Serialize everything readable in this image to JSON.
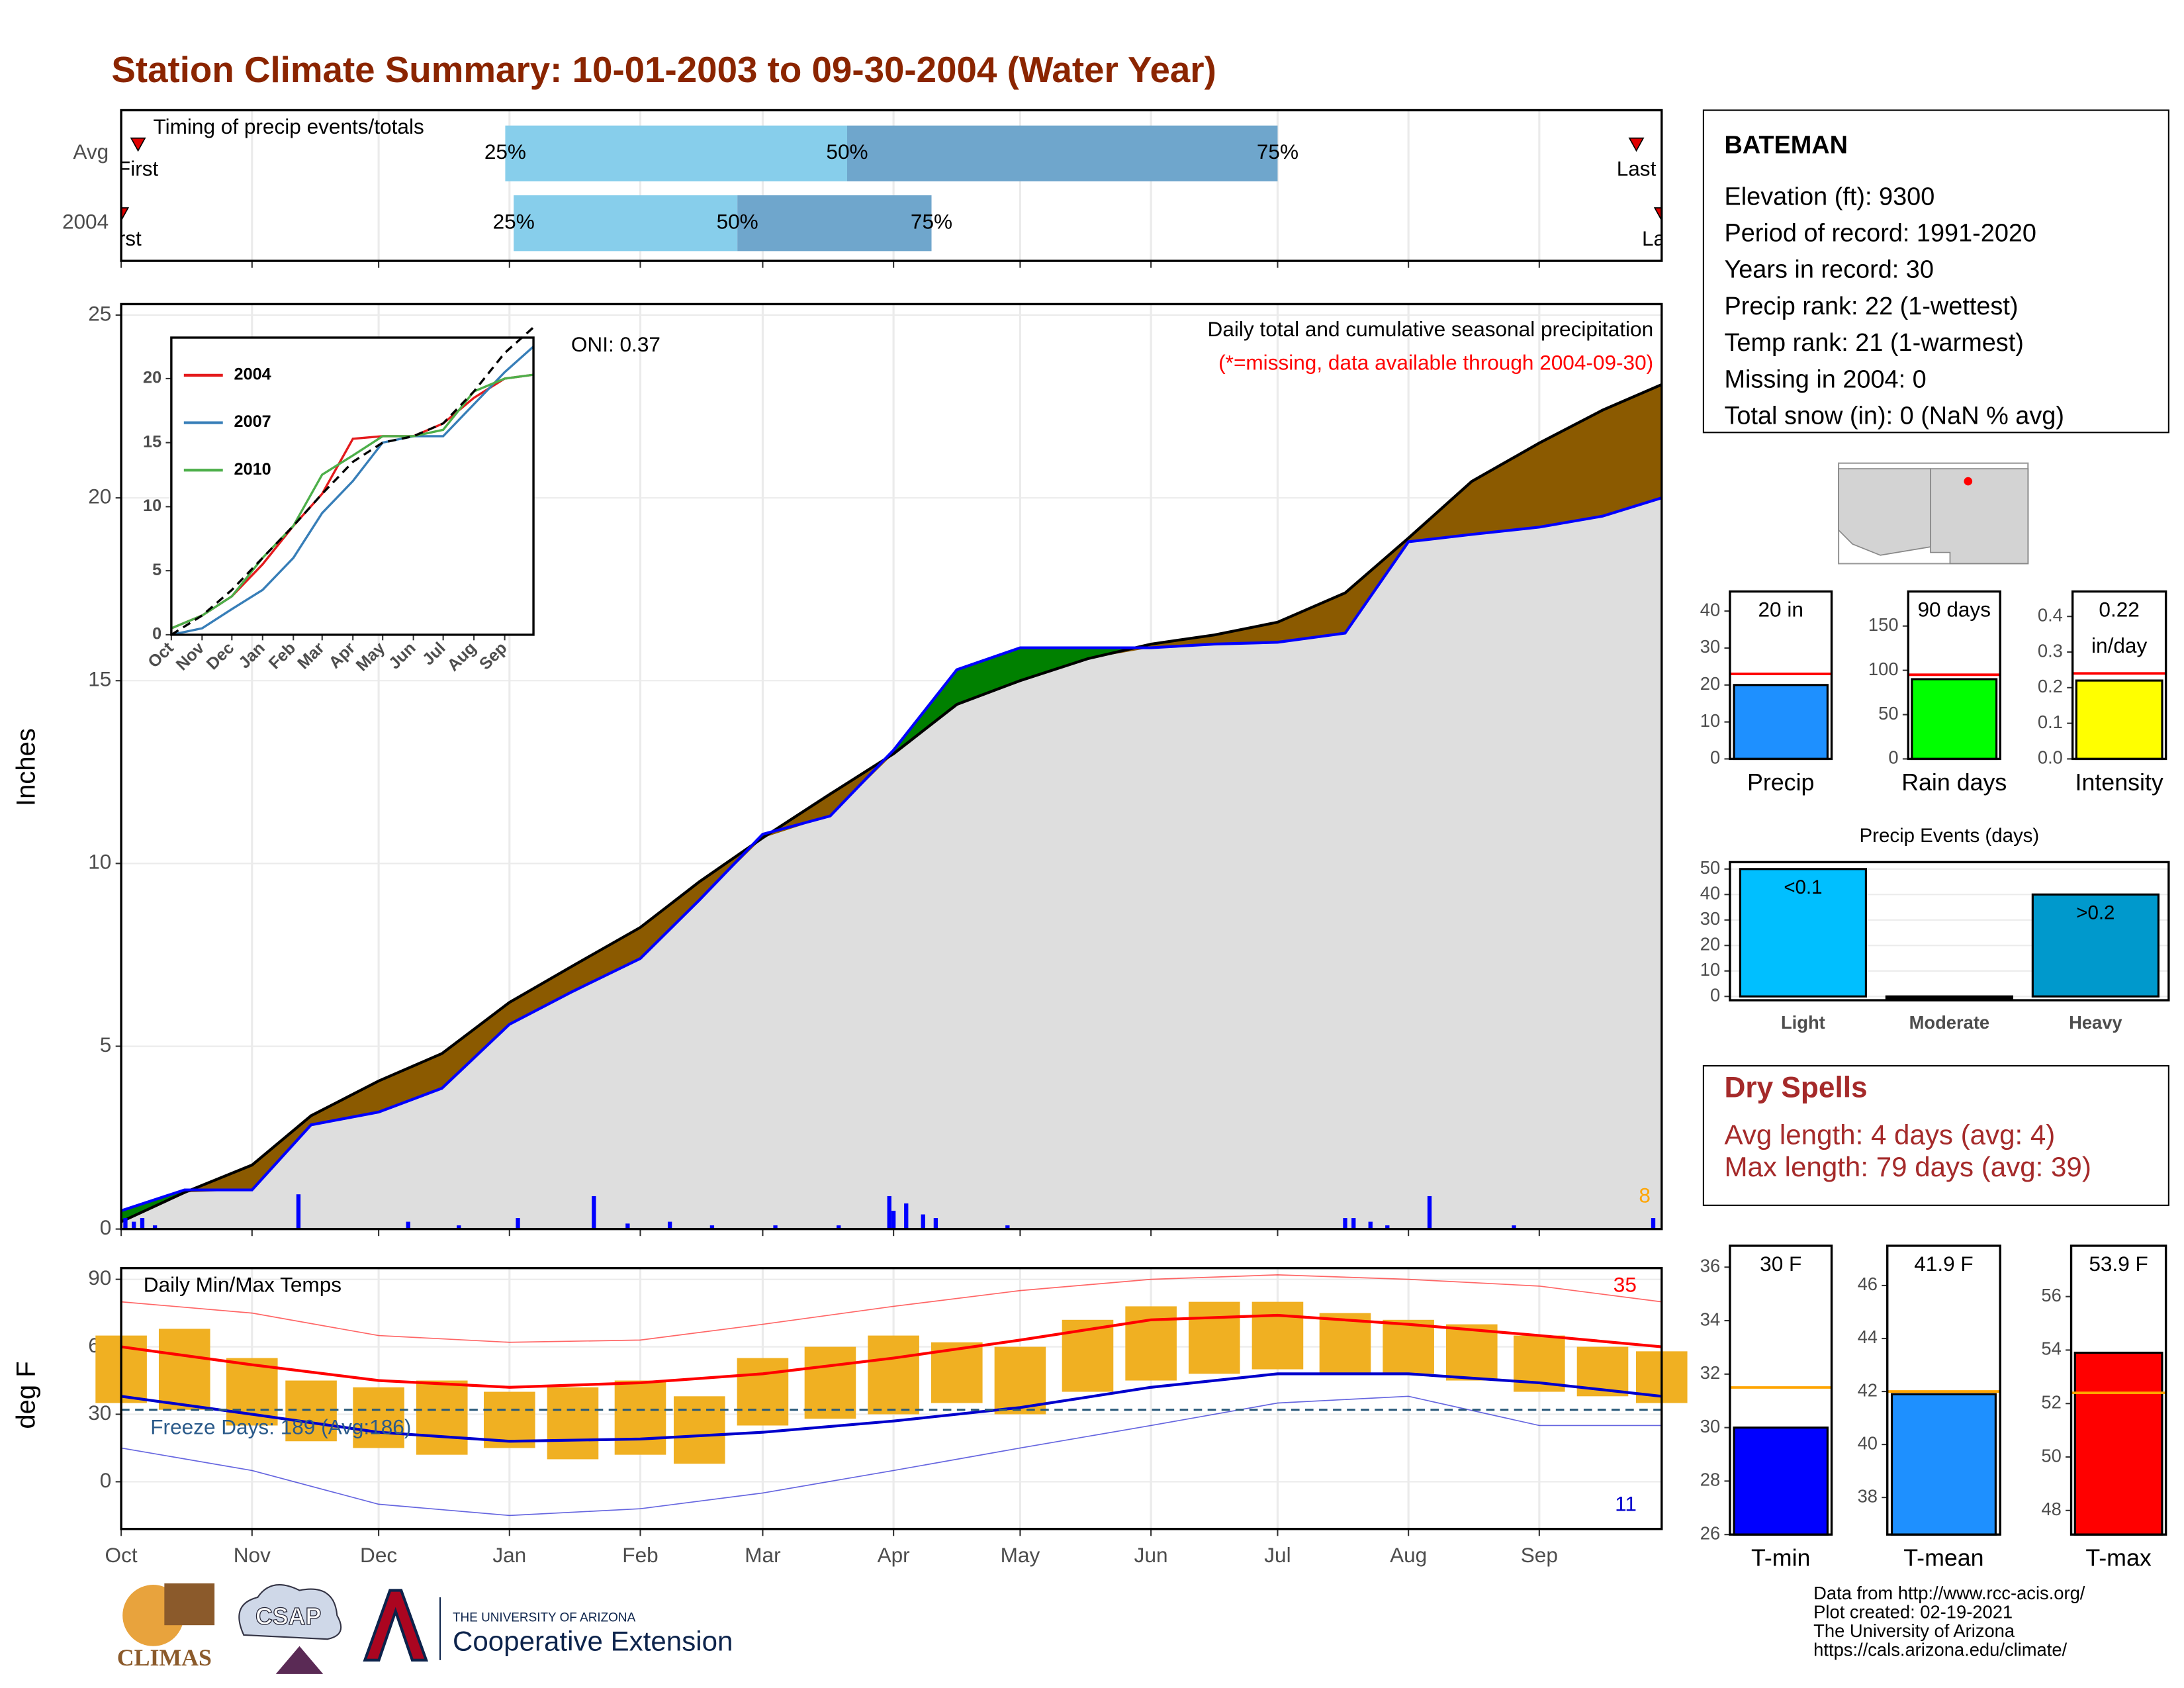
{
  "title": "Station Climate Summary: 10-01-2003 to 09-30-2004 (Water Year)",
  "chart_data": [
    {
      "type": "timing",
      "title": "Timing of precip events/totals",
      "xlim": [
        0,
        365
      ],
      "xticks": [
        0,
        31,
        61,
        92,
        123,
        152,
        183,
        213,
        244,
        274,
        305,
        336
      ],
      "grid": true,
      "rows": [
        {
          "label": "Avg",
          "first": 4,
          "q25": 91,
          "q50": 172,
          "q75": 274,
          "last": 359
        },
        {
          "label": "2004",
          "first": 0,
          "q25": 93,
          "q50": 146,
          "q75": 192,
          "last": 365
        }
      ],
      "quartile_labels": [
        "25%",
        "50%",
        "75%"
      ],
      "first_label": "First",
      "last_label": "Last",
      "colors": [
        "#87ceeb",
        "#6fa6cc"
      ],
      "marker_color": "#e00000"
    },
    {
      "type": "area",
      "ylabel": "Inches",
      "xlim": [
        0,
        365
      ],
      "ylim": [
        0,
        25.3
      ],
      "xticks": [
        0,
        31,
        61,
        92,
        123,
        152,
        183,
        213,
        244,
        274,
        305,
        336
      ],
      "yticks": [
        0,
        5,
        10,
        15,
        20,
        25
      ],
      "grid": true,
      "x": [
        0,
        15,
        31,
        45,
        61,
        76,
        92,
        107,
        123,
        137,
        152,
        168,
        183,
        198,
        213,
        229,
        244,
        259,
        274,
        290,
        305,
        320,
        336,
        351,
        365
      ],
      "series": [
        {
          "color": "#000000",
          "values": [
            0.2,
            1.0,
            1.75,
            3.1,
            4.05,
            4.8,
            6.2,
            7.2,
            8.25,
            9.5,
            10.7,
            11.9,
            13.0,
            14.35,
            15.0,
            15.6,
            16.0,
            16.25,
            16.6,
            17.4,
            18.9,
            20.45,
            21.5,
            22.4,
            23.1
          ]
        },
        {
          "color": "#0000ff",
          "values": [
            0.5,
            1.07,
            1.07,
            2.85,
            3.2,
            3.85,
            5.6,
            6.5,
            7.4,
            9.0,
            10.8,
            11.3,
            13.1,
            15.3,
            15.9,
            15.9,
            15.9,
            16.0,
            16.05,
            16.3,
            18.8,
            19.0,
            19.2,
            19.5,
            20.0
          ]
        }
      ],
      "above_color": "#8b5a00",
      "below_color": "#008000",
      "base_color": "#dedede",
      "daily": {
        "color": "#0000ff",
        "x": [
          1,
          3,
          5,
          8,
          42,
          68,
          80,
          94,
          112,
          120,
          130,
          140,
          155,
          170,
          182,
          183,
          186,
          190,
          193,
          210,
          290,
          292,
          296,
          300,
          310,
          330,
          363
        ],
        "values": [
          0.3,
          0.2,
          0.3,
          0.1,
          0.95,
          0.2,
          0.1,
          0.3,
          0.9,
          0.15,
          0.2,
          0.1,
          0.1,
          0.1,
          0.9,
          0.5,
          0.7,
          0.4,
          0.3,
          0.1,
          0.3,
          0.3,
          0.2,
          0.1,
          0.9,
          0.1,
          0.3
        ]
      },
      "annotations": [
        "ONI: 0.37",
        "Daily total and cumulative seasonal precipitation",
        "(*=missing, data available through 2004-09-30)",
        "8"
      ]
    },
    {
      "type": "line",
      "xlim": [
        0,
        365
      ],
      "ylim": [
        0,
        23.2
      ],
      "yticks": [
        0,
        5,
        10,
        15,
        20
      ],
      "xticks": [
        {
          "value": 0,
          "label": "Oct"
        },
        {
          "value": 31,
          "label": "Nov"
        },
        {
          "value": 61,
          "label": "Dec"
        },
        {
          "value": 92,
          "label": "Jan"
        },
        {
          "value": 123,
          "label": "Feb"
        },
        {
          "value": 152,
          "label": "Mar"
        },
        {
          "value": 183,
          "label": "Apr"
        },
        {
          "value": 213,
          "label": "May"
        },
        {
          "value": 244,
          "label": "Jun"
        },
        {
          "value": 274,
          "label": "Jul"
        },
        {
          "value": 305,
          "label": "Aug"
        },
        {
          "value": 336,
          "label": "Sep"
        }
      ],
      "x": [
        0,
        31,
        61,
        92,
        123,
        152,
        183,
        213,
        244,
        274,
        305,
        336,
        365
      ],
      "series": [
        {
          "name": "2004",
          "color": "#e41a1c",
          "values": [
            0.5,
            1.5,
            3,
            5.5,
            8.5,
            11,
            15.3,
            15.5,
            15.5,
            16.5,
            18.5,
            20,
            20.3
          ]
        },
        {
          "name": "2007",
          "color": "#377eb8",
          "values": [
            0,
            0.5,
            2,
            3.5,
            6,
            9.5,
            12,
            15,
            15.5,
            15.5,
            18,
            20.5,
            22.5
          ]
        },
        {
          "name": "2010",
          "color": "#4daf4a",
          "values": [
            0.5,
            1.5,
            3,
            6,
            8.5,
            12.5,
            14,
            15.5,
            15.5,
            16,
            19,
            20,
            20.3
          ]
        }
      ],
      "average": {
        "color": "#000000",
        "values": [
          0,
          1.5,
          3.5,
          6,
          8.5,
          11,
          13.5,
          15,
          15.5,
          16.5,
          19,
          22,
          24
        ]
      }
    },
    {
      "type": "range_bar",
      "ylabel": "deg F",
      "xlim": [
        0,
        365
      ],
      "ylim": [
        -21,
        95
      ],
      "yticks": [
        0,
        30,
        60,
        90
      ],
      "grid": true,
      "xticks": [
        {
          "value": 0,
          "label": "Oct"
        },
        {
          "value": 31,
          "label": "Nov"
        },
        {
          "value": 61,
          "label": "Dec"
        },
        {
          "value": 92,
          "label": "Jan"
        },
        {
          "value": 123,
          "label": "Feb"
        },
        {
          "value": 152,
          "label": "Mar"
        },
        {
          "value": 183,
          "label": "Apr"
        },
        {
          "value": 213,
          "label": "May"
        },
        {
          "value": 244,
          "label": "Jun"
        },
        {
          "value": 274,
          "label": "Jul"
        },
        {
          "value": 305,
          "label": "Aug"
        },
        {
          "value": 336,
          "label": "Sep"
        }
      ],
      "x": [
        0,
        15,
        31,
        45,
        61,
        76,
        92,
        107,
        123,
        137,
        152,
        168,
        183,
        198,
        213,
        229,
        244,
        259,
        274,
        290,
        305,
        320,
        336,
        351,
        365
      ],
      "tmax": [
        65,
        68,
        55,
        45,
        42,
        45,
        40,
        42,
        45,
        38,
        55,
        60,
        65,
        62,
        60,
        72,
        78,
        80,
        80,
        75,
        72,
        70,
        65,
        60,
        58
      ],
      "tmin": [
        35,
        32,
        25,
        18,
        15,
        12,
        15,
        10,
        12,
        8,
        25,
        28,
        30,
        35,
        30,
        40,
        45,
        48,
        50,
        48,
        48,
        45,
        40,
        38,
        35
      ],
      "bar_color": "#f0b022",
      "normals_x": [
        0,
        31,
        61,
        92,
        123,
        152,
        183,
        213,
        244,
        274,
        305,
        336,
        365
      ],
      "normal_max": [
        60,
        52,
        45,
        42,
        44,
        48,
        55,
        63,
        72,
        74,
        70,
        65,
        60
      ],
      "normal_min": [
        38,
        30,
        22,
        18,
        19,
        22,
        27,
        33,
        42,
        48,
        48,
        44,
        38
      ],
      "record_max": [
        80,
        75,
        65,
        62,
        63,
        70,
        78,
        85,
        90,
        92,
        90,
        87,
        80
      ],
      "record_min": [
        15,
        5,
        -10,
        -15,
        -12,
        -5,
        5,
        15,
        25,
        35,
        38,
        25,
        25
      ],
      "max_color": "#ff0000",
      "min_color": "#0000cc",
      "freeze_line": 32,
      "freeze_color": "#2a5a7a",
      "annotations": [
        "Daily Min/Max Temps",
        "Freeze Days: 189 (Avg:186)",
        "35",
        "11"
      ]
    },
    {
      "type": "bar",
      "categories": [
        "Precip"
      ],
      "values": [
        20
      ],
      "value_labels": [
        "20 in"
      ],
      "average": 23,
      "color": "#1e90ff",
      "avg_color": "#ff0000",
      "ylim": [
        0,
        45.3
      ],
      "yticks": [
        0,
        10,
        20,
        30,
        40
      ]
    },
    {
      "type": "bar",
      "categories": [
        "Rain days"
      ],
      "values": [
        90
      ],
      "value_labels": [
        "90 days"
      ],
      "average": 95,
      "color": "#00ff00",
      "avg_color": "#ff0000",
      "ylim": [
        0,
        189
      ],
      "yticks": [
        0,
        50,
        100,
        150
      ]
    },
    {
      "type": "bar",
      "categories": [
        "Intensity"
      ],
      "values": [
        0.22
      ],
      "value_labels": [
        "0.22"
      ],
      "unit_label": "in/day",
      "average": 0.24,
      "color": "#ffff00",
      "avg_color": "#ff0000",
      "ylim": [
        0,
        0.47
      ],
      "yticks": [
        {
          "value": 0,
          "label": "0.0"
        },
        0.1,
        0.2,
        0.3,
        0.4
      ]
    },
    {
      "type": "bar",
      "title": "Precip Events (days)",
      "categories": [
        "Light",
        "Moderate",
        "Heavy"
      ],
      "values": [
        50,
        0,
        40
      ],
      "bar_labels": [
        "<0.1",
        null,
        ">0.2"
      ],
      "colors": [
        "#00bfff",
        "#00bfff",
        "#0099cc"
      ],
      "ylim": [
        -1.5,
        52.7
      ],
      "yticks": [
        0,
        10,
        20,
        30,
        40,
        50
      ],
      "grid": true
    },
    {
      "type": "bar",
      "categories": [
        "T-min"
      ],
      "values": [
        30
      ],
      "value_labels": [
        "30 F"
      ],
      "average": 31.5,
      "color": "#0000ff",
      "avg_color": "#ffa500",
      "ylim": [
        26,
        36.8
      ],
      "yticks": [
        26,
        28,
        30,
        32,
        34,
        36
      ]
    },
    {
      "type": "bar",
      "categories": [
        "T-mean"
      ],
      "values": [
        41.9
      ],
      "value_labels": [
        "41.9 F"
      ],
      "average": 42,
      "color": "#1e90ff",
      "avg_color": "#ffa500",
      "ylim": [
        36.6,
        47.5
      ],
      "yticks": [
        38,
        40,
        42,
        44,
        46
      ]
    },
    {
      "type": "bar",
      "categories": [
        "T-max"
      ],
      "values": [
        53.9
      ],
      "value_labels": [
        "53.9 F"
      ],
      "average": 52.4,
      "color": "#ff0000",
      "avg_color": "#ffa500",
      "ylim": [
        47.1,
        57.9
      ],
      "yticks": [
        48,
        50,
        52,
        54,
        56
      ]
    }
  ],
  "station": {
    "name": "BATEMAN",
    "lines": [
      "Elevation (ft): 9300",
      "Period of record: 1991-2020",
      "Years in record: 30",
      "Precip rank: 22 (1-wettest)",
      "Temp rank: 21 (1-warmest)",
      "Missing in 2004: 0",
      "Total snow (in): 0 (NaN % avg)"
    ]
  },
  "dry_spells": {
    "title": "Dry Spells",
    "lines": [
      "Avg length: 4 days (avg: 4)",
      "Max length: 79 days (avg: 39)"
    ]
  },
  "footer": {
    "logos": [
      "CLIMAS",
      "CSAP",
      "THE UNIVERSITY OF ARIZONA",
      "Cooperative Extension"
    ],
    "credits": [
      "Data from http://www.rcc-acis.org/",
      "Plot created: 02-19-2021",
      "The University of Arizona",
      "https://cals.arizona.edu/climate/"
    ]
  }
}
